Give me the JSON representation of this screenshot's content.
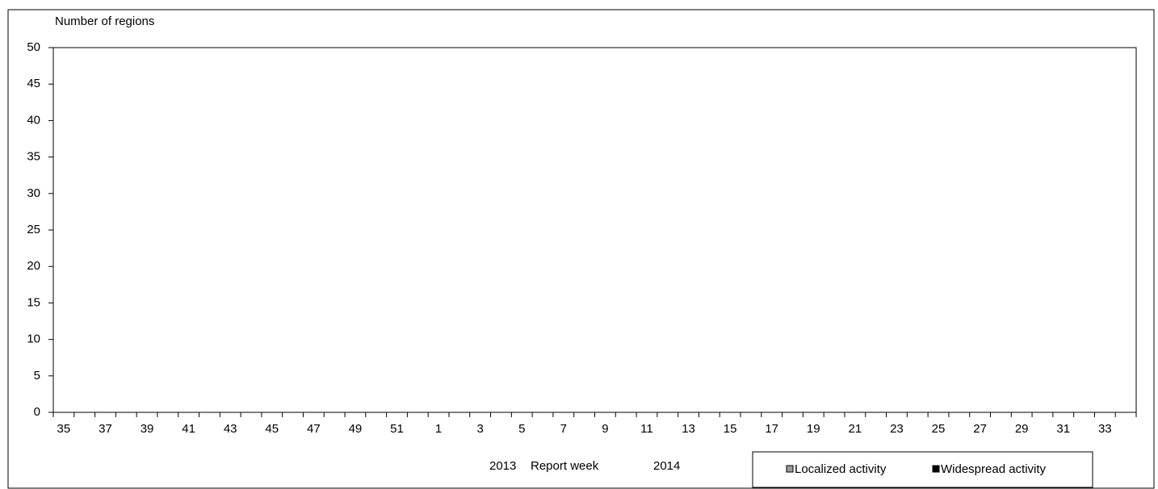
{
  "chart_data": {
    "type": "bar",
    "y_label": "Number of regions",
    "x_label": "Report week",
    "x_annotations": [
      "2013",
      "2014"
    ],
    "categories": [
      "35",
      null,
      "37",
      null,
      "39",
      null,
      "41",
      null,
      "43",
      null,
      "45",
      null,
      "47",
      null,
      "49",
      null,
      "51",
      null,
      "1",
      null,
      "3",
      null,
      "5",
      null,
      "7",
      null,
      "9",
      null,
      "11",
      null,
      "13",
      null,
      "15",
      null,
      "17",
      null,
      "19",
      null,
      "21",
      null,
      "23",
      null,
      "25",
      null,
      "27",
      null,
      "29",
      null,
      "31",
      null,
      "33",
      null
    ],
    "series": [
      {
        "name": "Localized activity",
        "color": "#9a9a9a",
        "values": [
          0,
          0,
          0,
          0,
          0,
          0,
          0,
          0,
          0,
          0,
          0,
          0,
          0,
          0,
          0,
          0,
          0,
          0,
          0,
          0,
          0,
          0,
          0,
          0,
          0,
          0,
          0,
          0,
          0,
          0,
          0,
          0,
          0,
          0,
          0,
          0,
          0,
          0,
          0,
          0,
          0,
          0,
          0,
          0,
          0,
          0,
          0,
          0,
          0,
          0,
          0,
          0
        ]
      },
      {
        "name": "Widespread activity",
        "color": "#000000",
        "values": [
          0,
          0,
          0,
          0,
          0,
          0,
          0,
          0,
          0,
          0,
          0,
          0,
          0,
          0,
          0,
          0,
          0,
          0,
          0,
          0,
          0,
          0,
          0,
          0,
          0,
          0,
          0,
          0,
          0,
          0,
          0,
          0,
          0,
          0,
          0,
          0,
          0,
          0,
          0,
          0,
          0,
          0,
          0,
          0,
          0,
          0,
          0,
          0,
          0,
          0,
          0,
          0
        ]
      }
    ],
    "stacked": true,
    "ylim": [
      0,
      50
    ],
    "yticks": [
      0,
      5,
      10,
      15,
      20,
      25,
      30,
      35,
      40,
      45,
      50
    ]
  }
}
